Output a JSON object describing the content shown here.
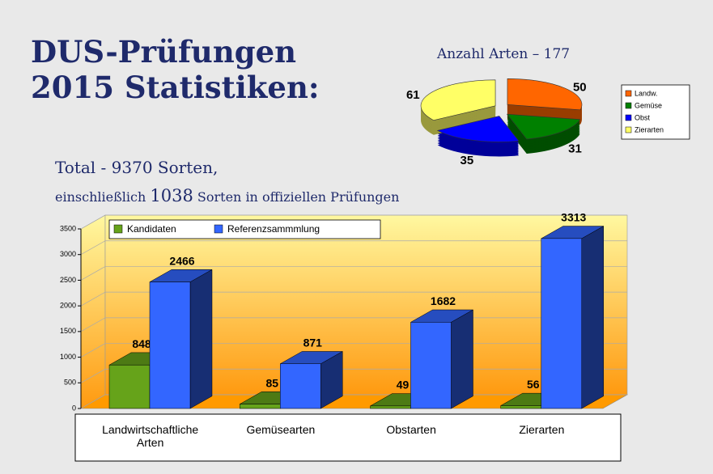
{
  "slide": {
    "title": [
      "DUS-Prüfungen",
      "2015 Statistiken:"
    ],
    "total": "Total - 9370 Sorten,",
    "subtitle": [
      "einschließlich",
      "1038",
      "Sorten in offiziellen Prüfungen"
    ]
  },
  "chart_data": [
    {
      "type": "pie",
      "title": "Anzahl Arten – 177",
      "categories": [
        "Landw.",
        "Gemüse",
        "Obst",
        "Zierarten"
      ],
      "values": [
        50,
        31,
        35,
        61
      ],
      "colors": [
        "#ff6600",
        "#008000",
        "#0000ff",
        "#ffff66"
      ]
    },
    {
      "type": "bar",
      "categories": [
        "Landwirtschaftliche Arten",
        "Gemüsearten",
        "Obstarten",
        "Zierarten"
      ],
      "series": [
        {
          "name": "Kandidaten",
          "color": "#66a31a",
          "values": [
            848,
            85,
            49,
            56
          ]
        },
        {
          "name": "Referenzsammmlung",
          "color": "#3366ff",
          "values": [
            2466,
            871,
            1682,
            3313
          ]
        }
      ],
      "ylim": [
        0,
        3500
      ],
      "yticks": [
        0,
        500,
        1000,
        1500,
        2000,
        2500,
        3000,
        3500
      ],
      "grid": true
    }
  ]
}
